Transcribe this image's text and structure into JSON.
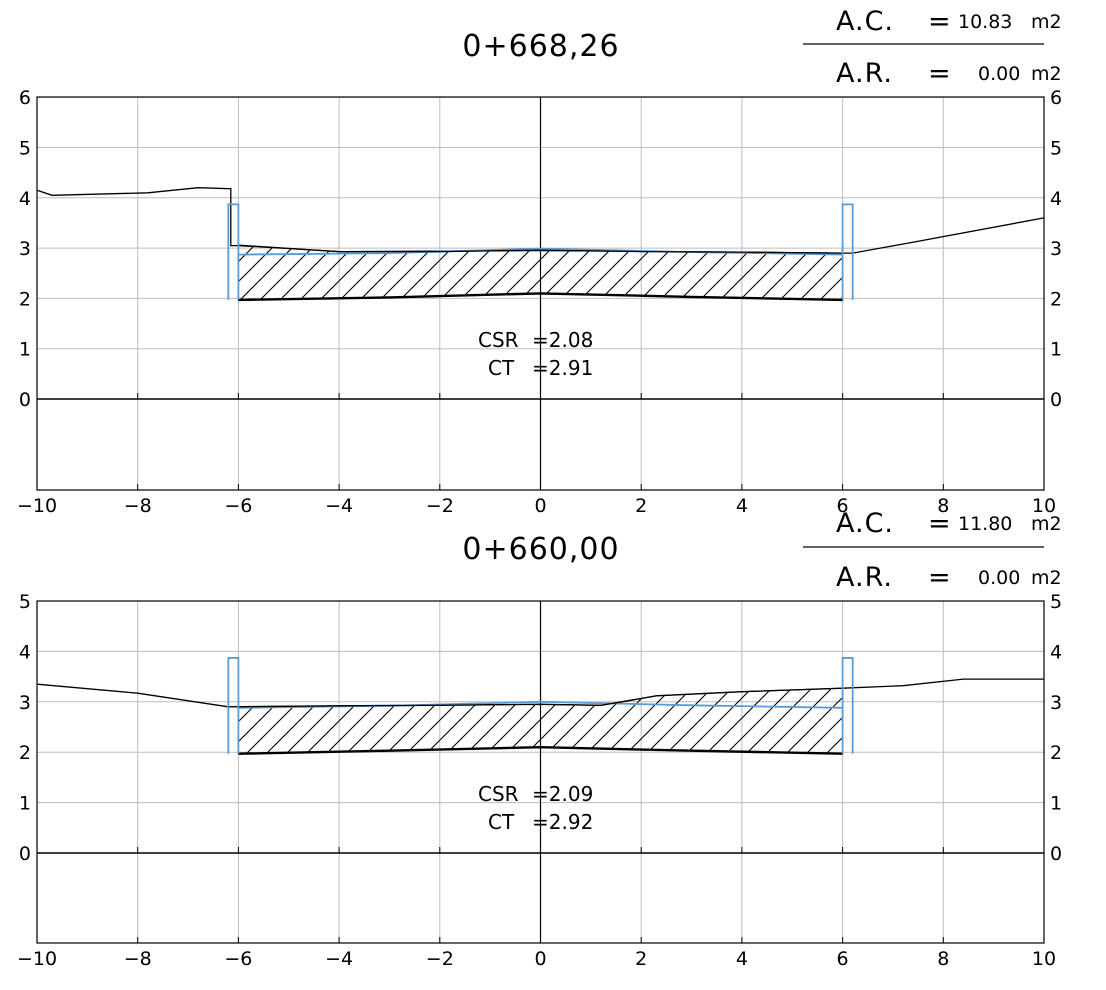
{
  "sections": [
    {
      "station": "0+668,26",
      "ac_label": "A.C.",
      "ac_eq": "=",
      "ac_value": "10.83",
      "ac_unit": "m2",
      "ar_label": "A.R.",
      "ar_eq": "=",
      "ar_value": "0.00",
      "ar_unit": "m2",
      "csr_label": "CSR",
      "csr_value": "=2.08",
      "ct_label": "CT",
      "ct_value": "=2.91",
      "x_ticks": [
        "−10",
        "−8",
        "−6",
        "−4",
        "−2",
        "0",
        "2",
        "4",
        "6",
        "8",
        "10"
      ],
      "y_ticks": [
        "0",
        "1",
        "2",
        "3",
        "4",
        "5",
        "6"
      ],
      "xlim": [
        -10,
        10
      ],
      "ylim": [
        -1.8,
        6
      ],
      "terrain": [
        [
          -10,
          4.15
        ],
        [
          -9.7,
          4.05
        ],
        [
          -7.8,
          4.1
        ],
        [
          -6.8,
          4.2
        ],
        [
          -6.15,
          4.18
        ],
        [
          -6.15,
          3.05
        ],
        [
          -6.0,
          3.05
        ],
        [
          -4.0,
          2.93
        ],
        [
          -2.0,
          2.93
        ],
        [
          0,
          2.96
        ],
        [
          2.0,
          2.93
        ],
        [
          4.0,
          2.92
        ],
        [
          6.0,
          2.9
        ],
        [
          6.2,
          2.9
        ],
        [
          7.3,
          3.1
        ],
        [
          10,
          3.6
        ]
      ],
      "design_top": [
        [
          -6,
          2.87
        ],
        [
          -3,
          2.9
        ],
        [
          0,
          2.99
        ],
        [
          3,
          2.92
        ],
        [
          6,
          2.87
        ]
      ],
      "subgrade": [
        [
          -6,
          1.97
        ],
        [
          -3,
          2.02
        ],
        [
          0,
          2.1
        ],
        [
          3,
          2.03
        ],
        [
          6,
          1.97
        ]
      ],
      "cut_top": [
        [
          -6,
          3.06
        ],
        [
          -4,
          2.93
        ],
        [
          0,
          2.95
        ],
        [
          4,
          2.92
        ],
        [
          6,
          2.9
        ]
      ],
      "curbs": {
        "inner": 6.0,
        "outer": 6.2,
        "bottom": 1.97,
        "top": 3.87
      }
    },
    {
      "station": "0+660,00",
      "ac_label": "A.C.",
      "ac_eq": "=",
      "ac_value": "11.80",
      "ac_unit": "m2",
      "ar_label": "A.R.",
      "ar_eq": "=",
      "ar_value": "0.00",
      "ar_unit": "m2",
      "csr_label": "CSR",
      "csr_value": "=2.09",
      "ct_label": "CT",
      "ct_value": "=2.92",
      "x_ticks": [
        "−10",
        "−8",
        "−6",
        "−4",
        "−2",
        "0",
        "2",
        "4",
        "6",
        "8",
        "10"
      ],
      "y_ticks": [
        "0",
        "1",
        "2",
        "3",
        "4",
        "5"
      ],
      "xlim": [
        -10,
        10
      ],
      "ylim": [
        -1.8,
        5
      ],
      "terrain": [
        [
          -10,
          3.35
        ],
        [
          -8,
          3.17
        ],
        [
          -6.2,
          2.9
        ],
        [
          -4,
          2.92
        ],
        [
          -2,
          2.93
        ],
        [
          0,
          2.95
        ],
        [
          1.2,
          2.93
        ],
        [
          1.8,
          3.03
        ],
        [
          2.3,
          3.12
        ],
        [
          4,
          3.2
        ],
        [
          6,
          3.27
        ],
        [
          7.2,
          3.32
        ],
        [
          8.4,
          3.45
        ],
        [
          10,
          3.45
        ]
      ],
      "design_top": [
        [
          -6,
          2.88
        ],
        [
          -3,
          2.92
        ],
        [
          0,
          3.0
        ],
        [
          3,
          2.93
        ],
        [
          6,
          2.88
        ]
      ],
      "subgrade": [
        [
          -6,
          1.97
        ],
        [
          -3,
          2.03
        ],
        [
          0,
          2.1
        ],
        [
          3,
          2.03
        ],
        [
          6,
          1.97
        ]
      ],
      "cut_top": [
        [
          -6,
          2.9
        ],
        [
          -4,
          2.92
        ],
        [
          0,
          2.95
        ],
        [
          1.2,
          2.93
        ],
        [
          2.3,
          3.12
        ],
        [
          4,
          3.2
        ],
        [
          6,
          3.27
        ]
      ],
      "curbs": {
        "inner": 6.0,
        "outer": 6.2,
        "bottom": 1.97,
        "top": 3.87
      }
    }
  ],
  "colors": {
    "grid": "#bdbdbd",
    "axis": "#000000",
    "terrain": "#000000",
    "design": "#5b9bd5",
    "curb": "#5b9bd5",
    "hatch": "#000000",
    "background": "#ffffff"
  }
}
